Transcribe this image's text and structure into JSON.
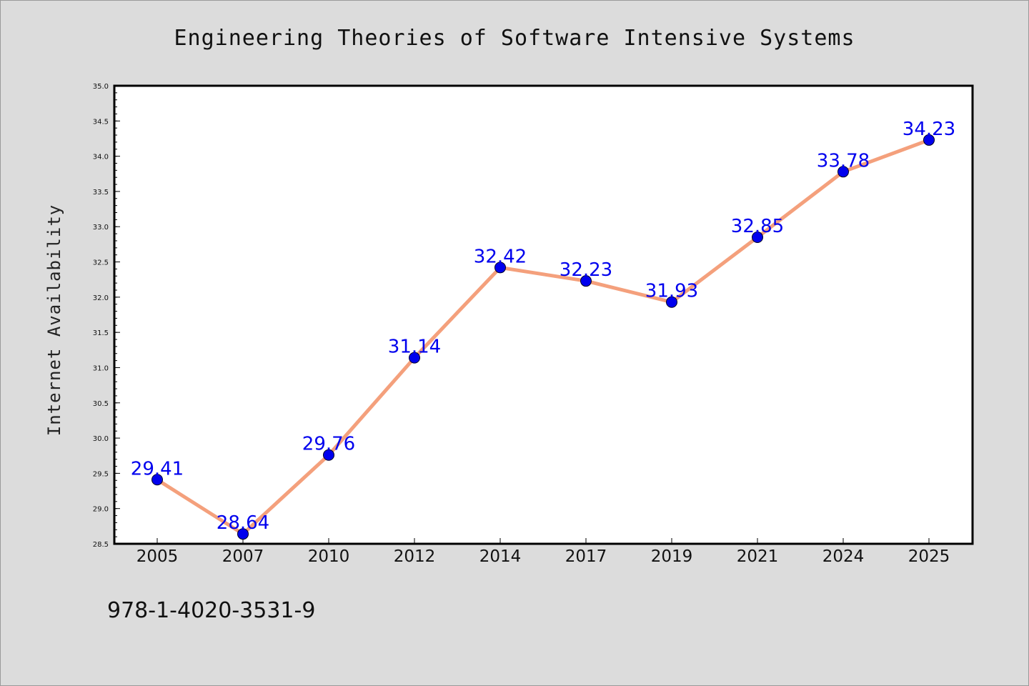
{
  "colors": {
    "background": "#dcdcdc",
    "plot_area": "#ffffff",
    "line": "#f4a07c",
    "marker": "#0000ee",
    "label": "#0000ee"
  },
  "footnote": "978-1-4020-3531-9",
  "chart_data": {
    "type": "line",
    "title": "Engineering Theories of Software Intensive Systems",
    "xlabel": "",
    "ylabel": "Internet Availability",
    "categories": [
      "2005",
      "2007",
      "2010",
      "2012",
      "2014",
      "2017",
      "2019",
      "2021",
      "2024",
      "2025"
    ],
    "series": [
      {
        "values": [
          29.41,
          28.64,
          29.76,
          31.14,
          32.42,
          32.23,
          31.93,
          32.85,
          33.78,
          34.23
        ],
        "labels": [
          "29.41",
          "28.64",
          "29.76",
          "31.14",
          "32.42",
          "32.23",
          "31.93",
          "32.85",
          "33.78",
          "34.23"
        ]
      }
    ],
    "ylim": [
      28.5,
      35.0
    ],
    "yticks": [
      "28.5",
      "29.0",
      "29.5",
      "30.0",
      "30.5",
      "31.0",
      "31.5",
      "32.0",
      "32.5",
      "33.0",
      "33.5",
      "34.0",
      "34.5",
      "35.0"
    ],
    "grid": false,
    "legend": "none"
  }
}
